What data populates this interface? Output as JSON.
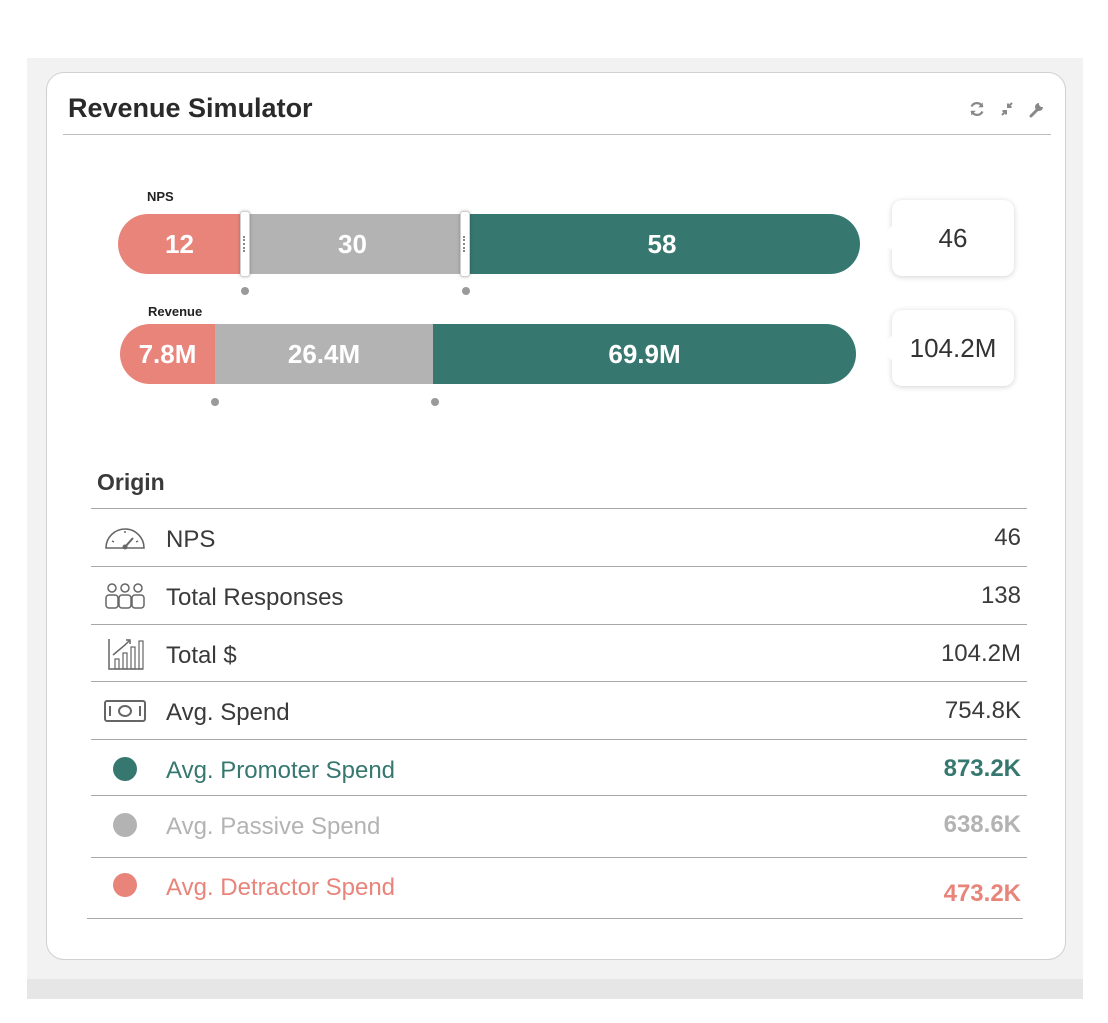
{
  "widget": {
    "title": "Revenue Simulator",
    "tools": [
      {
        "name": "refresh-icon",
        "glyph": "⟳"
      },
      {
        "name": "collapse-icon",
        "glyph": "⤡"
      },
      {
        "name": "wrench-icon",
        "glyph": "🔧"
      }
    ]
  },
  "nps_bar": {
    "label": "NPS",
    "detractors": "12",
    "passives": "30",
    "promoters": "58",
    "total": "46"
  },
  "revenue_bar": {
    "label": "Revenue",
    "detractors": "7.8M",
    "passives": "26.4M",
    "promoters": "69.9M",
    "total": "104.2M"
  },
  "origin": {
    "title": "Origin",
    "rows": [
      {
        "label": "NPS",
        "value": "46"
      },
      {
        "label": "Total Responses",
        "value": "138"
      },
      {
        "label": "Total $",
        "value": "104.2M"
      },
      {
        "label": "Avg. Spend",
        "value": "754.8K"
      },
      {
        "label": "Avg. Promoter Spend",
        "value": "873.2K"
      },
      {
        "label": "Avg. Passive Spend",
        "value": "638.6K"
      },
      {
        "label": "Avg. Detractor  Spend",
        "value": "473.2K"
      }
    ]
  },
  "colors": {
    "promoter": "#367870",
    "passive": "#b3b3b3",
    "detractor": "#e8847a"
  }
}
